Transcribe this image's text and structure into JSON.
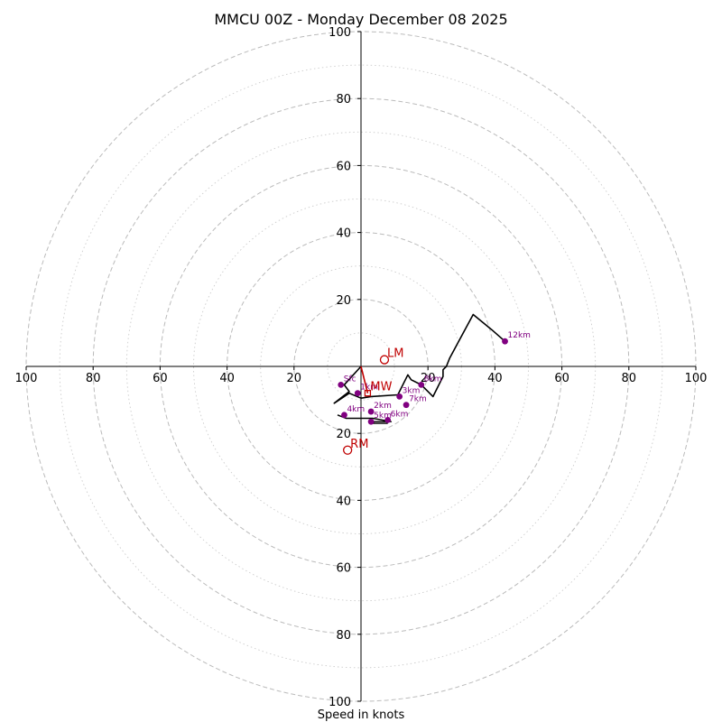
{
  "chart_data": {
    "type": "hodograph",
    "title": "MMCU 00Z - Monday December 08 2025",
    "xlabel": "Speed in knots",
    "range_max": 100,
    "ring_major": [
      20,
      40,
      60,
      80,
      100
    ],
    "ring_minor": [
      10,
      30,
      50,
      70,
      90
    ],
    "tick_labels": {
      "left": [
        "100",
        "80",
        "60",
        "40",
        "20"
      ],
      "right": [
        "20",
        "40",
        "60",
        "80",
        "100"
      ],
      "top": [
        "20",
        "40",
        "60",
        "80",
        "100"
      ],
      "bottom": [
        "20",
        "40",
        "60",
        "80",
        "100"
      ]
    },
    "tick_values": [
      20,
      40,
      60,
      80,
      100
    ],
    "colors": {
      "trace": "#000000",
      "points": "#800080",
      "motion": "#c00000",
      "grid": "#bbbbbb",
      "axis": "#000000"
    },
    "trace": [
      [
        0,
        0
      ],
      [
        -5,
        -5.5
      ],
      [
        -3.5,
        -7.5
      ],
      [
        -8,
        -11
      ],
      [
        -3.5,
        -8
      ],
      [
        0,
        -9.5
      ],
      [
        3,
        -9
      ],
      [
        11,
        -8.5
      ],
      [
        14,
        -2.5
      ],
      [
        15,
        -4
      ],
      [
        18,
        -5.5
      ],
      [
        20,
        -7.5
      ],
      [
        21.5,
        -9
      ],
      [
        24.5,
        -3
      ],
      [
        24.5,
        -1
      ],
      [
        25.5,
        0
      ],
      [
        26.5,
        2.5
      ],
      [
        33.5,
        15.5
      ],
      [
        39,
        11
      ],
      [
        43,
        7.5
      ]
    ],
    "inner_path": [
      [
        -7,
        -14.5
      ],
      [
        -4.5,
        -15.5
      ],
      [
        3.5,
        -15.5
      ],
      [
        9,
        -16.5
      ],
      [
        4,
        -16.5
      ],
      [
        3,
        -17
      ],
      [
        8,
        -17
      ]
    ],
    "points": [
      {
        "label": "Sfc",
        "u": -6,
        "v": -5.5
      },
      {
        "label": "1km",
        "u": -1,
        "v": -8
      },
      {
        "label": "2km",
        "u": 3,
        "v": -13.5
      },
      {
        "label": "3km",
        "u": 11.5,
        "v": -9
      },
      {
        "label": "4km",
        "u": -5,
        "v": -14.5
      },
      {
        "label": "5km",
        "u": 3,
        "v": -16.5
      },
      {
        "label": "6km",
        "u": 8,
        "v": -16
      },
      {
        "label": "7km",
        "u": 13.5,
        "v": -11.5
      },
      {
        "label": "8km",
        "u": 18,
        "v": -5.5
      },
      {
        "label": "12km",
        "u": 43,
        "v": 7.5
      }
    ],
    "storm_motion": [
      {
        "label": "LM",
        "u": 7,
        "v": 2
      },
      {
        "label": "MW",
        "u": 2,
        "v": -8
      },
      {
        "label": "RM",
        "u": -4,
        "v": -25
      }
    ]
  }
}
